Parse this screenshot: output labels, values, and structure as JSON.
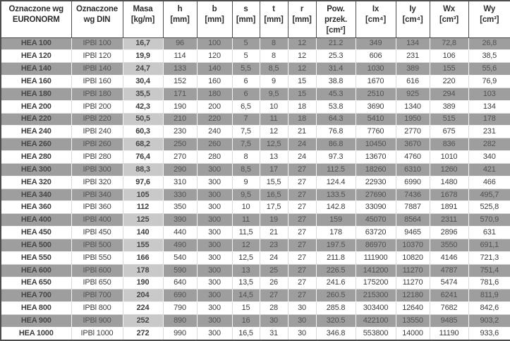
{
  "table": {
    "columns": [
      {
        "id": "euronorm",
        "label": "Oznaczone wg\nEURONORM"
      },
      {
        "id": "din",
        "label": "Oznaczone\nwg DIN"
      },
      {
        "id": "masa",
        "label": "Masa\n[kg/m]"
      },
      {
        "id": "h",
        "label": "h\n[mm]"
      },
      {
        "id": "b",
        "label": "b\n[mm]"
      },
      {
        "id": "s",
        "label": "s\n[mm]"
      },
      {
        "id": "t",
        "label": "t\n[mm]"
      },
      {
        "id": "r",
        "label": "r\n[mm]"
      },
      {
        "id": "pow-przek",
        "label": "Pow.\nprzek.\n[cm²]"
      },
      {
        "id": "ix",
        "label": "Ix\n[cm⁴]"
      },
      {
        "id": "iy",
        "label": "Iy\n[cm⁴]"
      },
      {
        "id": "wx",
        "label": "Wx\n[cm³]"
      },
      {
        "id": "wy",
        "label": "Wy\n[cm³]"
      }
    ],
    "rows": [
      [
        "HEA 100",
        "IPBl 100",
        "16,7",
        "96",
        "100",
        "5",
        "8",
        "12",
        "21.2",
        "349",
        "134",
        "72,8",
        "26,8"
      ],
      [
        "HEA 120",
        "IPBl 120",
        "19,9",
        "114",
        "120",
        "5",
        "8",
        "12",
        "25.3",
        "606",
        "231",
        "106",
        "38,5"
      ],
      [
        "HEA 140",
        "IPBl 140",
        "24,7",
        "133",
        "140",
        "5,5",
        "8,5",
        "12",
        "31.4",
        "1030",
        "389",
        "155",
        "55,6"
      ],
      [
        "HEA 160",
        "IPBl 160",
        "30,4",
        "152",
        "160",
        "6",
        "9",
        "15",
        "38.8",
        "1670",
        "616",
        "220",
        "76,9"
      ],
      [
        "HEA 180",
        "IPBl 180",
        "35,5",
        "171",
        "180",
        "6",
        "9,5",
        "15",
        "45.3",
        "2510",
        "925",
        "294",
        "103"
      ],
      [
        "HEA 200",
        "IPBl 200",
        "42,3",
        "190",
        "200",
        "6,5",
        "10",
        "18",
        "53.8",
        "3690",
        "1340",
        "389",
        "134"
      ],
      [
        "HEA 220",
        "IPBl 220",
        "50,5",
        "210",
        "220",
        "7",
        "11",
        "18",
        "64.3",
        "5410",
        "1950",
        "515",
        "178"
      ],
      [
        "HEA 240",
        "IPBl 240",
        "60,3",
        "230",
        "240",
        "7,5",
        "12",
        "21",
        "76.8",
        "7760",
        "2770",
        "675",
        "231"
      ],
      [
        "HEA 260",
        "IPBl 260",
        "68,2",
        "250",
        "260",
        "7,5",
        "12,5",
        "24",
        "86.8",
        "10450",
        "3670",
        "836",
        "282"
      ],
      [
        "HEA 280",
        "IPBl 280",
        "76,4",
        "270",
        "280",
        "8",
        "13",
        "24",
        "97.3",
        "13670",
        "4760",
        "1010",
        "340"
      ],
      [
        "HEA 300",
        "IPBl 300",
        "88,3",
        "290",
        "300",
        "8,5",
        "17",
        "27",
        "112.5",
        "18260",
        "6310",
        "1260",
        "421"
      ],
      [
        "HEA 320",
        "IPBl 320",
        "97,6",
        "310",
        "300",
        "9",
        "15,5",
        "27",
        "124.4",
        "22930",
        "6990",
        "1480",
        "466"
      ],
      [
        "HEA 340",
        "IPBl 340",
        "105",
        "330",
        "300",
        "9,5",
        "16,5",
        "27",
        "133.5",
        "27690",
        "7436",
        "1678",
        "495,7"
      ],
      [
        "HEA 360",
        "IPBl 360",
        "112",
        "350",
        "300",
        "10",
        "17,5",
        "27",
        "142.8",
        "33090",
        "7887",
        "1891",
        "525,8"
      ],
      [
        "HEA 400",
        "IPBl 400",
        "125",
        "390",
        "300",
        "11",
        "19",
        "27",
        "159",
        "45070",
        "8564",
        "2311",
        "570,9"
      ],
      [
        "HEA 450",
        "IPBl 450",
        "140",
        "440",
        "300",
        "11,5",
        "21",
        "27",
        "178",
        "63720",
        "9465",
        "2896",
        "631"
      ],
      [
        "HEA 500",
        "IPBl 500",
        "155",
        "490",
        "300",
        "12",
        "23",
        "27",
        "197.5",
        "86970",
        "10370",
        "3550",
        "691,1"
      ],
      [
        "HEA 550",
        "IPBl 550",
        "166",
        "540",
        "300",
        "12,5",
        "24",
        "27",
        "211.8",
        "111900",
        "10820",
        "4146",
        "721,3"
      ],
      [
        "HEA 600",
        "IPBl 600",
        "178",
        "590",
        "300",
        "13",
        "25",
        "27",
        "226.5",
        "141200",
        "11270",
        "4787",
        "751,4"
      ],
      [
        "HEA 650",
        "IPBl 650",
        "190",
        "640",
        "300",
        "13,5",
        "26",
        "27",
        "241.6",
        "175200",
        "11270",
        "5474",
        "781,6"
      ],
      [
        "HEA 700",
        "IPBl 700",
        "204",
        "690",
        "300",
        "14,5",
        "27",
        "27",
        "260.5",
        "215300",
        "12180",
        "6241",
        "811,9"
      ],
      [
        "HEA 800",
        "IPBl 800",
        "224",
        "790",
        "300",
        "15",
        "28",
        "30",
        "285.8",
        "303400",
        "12640",
        "7682",
        "842,6"
      ],
      [
        "HEA 900",
        "IPBl 900",
        "252",
        "890",
        "300",
        "16",
        "30",
        "30",
        "320.5",
        "422100",
        "13550",
        "9485",
        "903,2"
      ],
      [
        "HEA 1000",
        "IPBl 1000",
        "272",
        "990",
        "300",
        "16,5",
        "31",
        "30",
        "346.8",
        "553800",
        "14000",
        "11190",
        "933,6"
      ]
    ]
  },
  "colors": {
    "shaded_row_bg": "#9e9e9e",
    "shaded_masa_bg": "#c9c9c9",
    "plain_row_bg": "#ffffff",
    "header_bg": "#ffffff",
    "border_dark": "#4d4d4d",
    "shaded_text": "#525252",
    "plain_text": "#3c3c3c"
  }
}
